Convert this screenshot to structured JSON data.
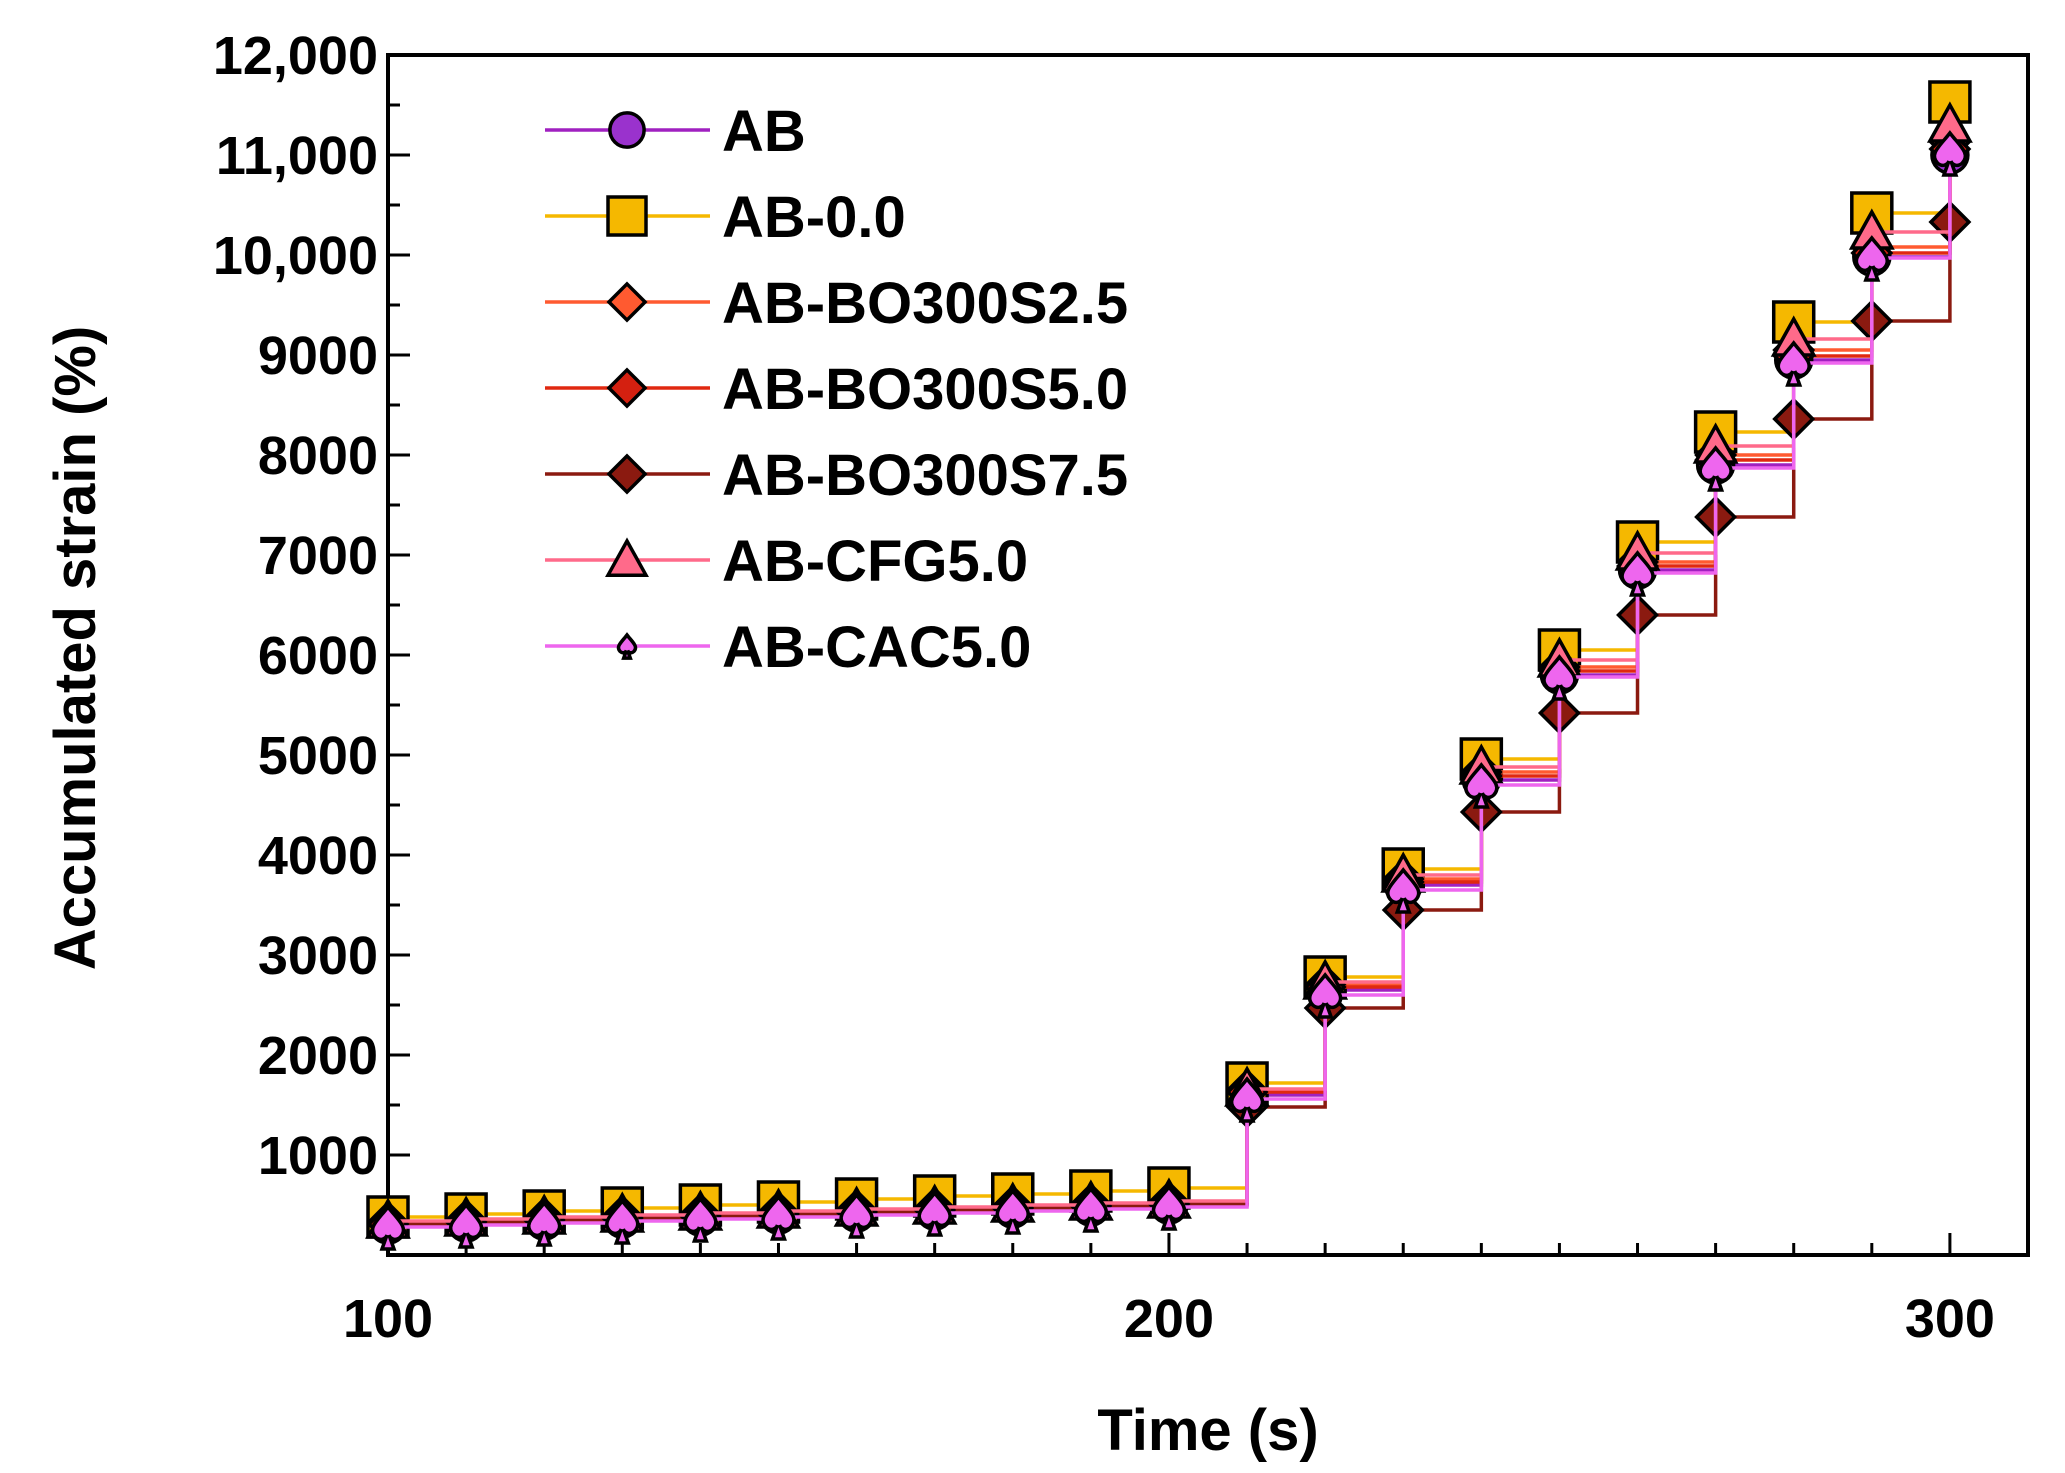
{
  "chart_data": {
    "type": "line",
    "xlabel": "Time (s)",
    "ylabel": "Accumulated strain (%)",
    "xlim": [
      100,
      310
    ],
    "ylim": [
      0,
      12000
    ],
    "x_ticks": [
      {
        "value": 100,
        "label": "100"
      },
      {
        "value": 200,
        "label": "200"
      },
      {
        "value": 300,
        "label": "300"
      }
    ],
    "y_ticks": [
      {
        "value": 1000,
        "label": "1000"
      },
      {
        "value": 2000,
        "label": "2000"
      },
      {
        "value": 3000,
        "label": "3000"
      },
      {
        "value": 4000,
        "label": "4000"
      },
      {
        "value": 5000,
        "label": "5000"
      },
      {
        "value": 6000,
        "label": "6000"
      },
      {
        "value": 7000,
        "label": "7000"
      },
      {
        "value": 8000,
        "label": "8000"
      },
      {
        "value": 9000,
        "label": "9000"
      },
      {
        "value": 10000,
        "label": "10,000"
      },
      {
        "value": 11000,
        "label": "11,000"
      },
      {
        "value": 12000,
        "label": "12,000"
      }
    ],
    "legend_position": "top-left",
    "x": [
      100,
      110,
      120,
      130,
      140,
      150,
      160,
      170,
      180,
      190,
      200,
      210,
      220,
      230,
      240,
      250,
      260,
      270,
      280,
      290,
      300
    ],
    "series": [
      {
        "name": "AB",
        "marker": "circle",
        "line_color": "#a020c0",
        "fill": "#9a32cd",
        "values": [
          300,
          320,
          340,
          360,
          380,
          400,
          420,
          440,
          460,
          480,
          500,
          1600,
          2650,
          3700,
          4750,
          5800,
          6850,
          7900,
          8950,
          9980,
          11000
        ]
      },
      {
        "name": "AB-0.0",
        "marker": "square",
        "line_color": "#f5b800",
        "fill": "#f5b800",
        "values": [
          380,
          410,
          440,
          470,
          500,
          530,
          560,
          590,
          610,
          640,
          670,
          1720,
          2780,
          3860,
          4960,
          6050,
          7130,
          8230,
          9330,
          10420,
          11530
        ]
      },
      {
        "name": "AB-BO300S2.5",
        "marker": "diamond",
        "line_color": "#ff5a30",
        "fill": "#ff5a30",
        "values": [
          330,
          350,
          370,
          390,
          410,
          430,
          450,
          470,
          490,
          510,
          530,
          1650,
          2700,
          3760,
          4830,
          5880,
          6930,
          8000,
          9050,
          10080,
          11130
        ]
      },
      {
        "name": "AB-BO300S5.0",
        "marker": "diamond",
        "line_color": "#e02810",
        "fill": "#d42010",
        "values": [
          320,
          340,
          360,
          380,
          400,
          420,
          440,
          460,
          480,
          500,
          520,
          1630,
          2680,
          3730,
          4790,
          5840,
          6890,
          7950,
          8990,
          10020,
          11060
        ]
      },
      {
        "name": "AB-BO300S7.5",
        "marker": "diamond",
        "line_color": "#8b1a10",
        "fill": "#8b1a10",
        "values": [
          310,
          330,
          350,
          370,
          390,
          410,
          430,
          450,
          470,
          490,
          510,
          1480,
          2470,
          3450,
          4430,
          5420,
          6400,
          7380,
          8360,
          9340,
          10330
        ]
      },
      {
        "name": "AB-CFG5.0",
        "marker": "triangle",
        "line_color": "#ff6a8a",
        "fill": "#ff6a8a",
        "values": [
          340,
          360,
          380,
          400,
          420,
          440,
          460,
          480,
          500,
          520,
          540,
          1660,
          2730,
          3800,
          4880,
          5950,
          7020,
          8090,
          9160,
          10230,
          11300
        ]
      },
      {
        "name": "AB-CAC5.0",
        "marker": "spade",
        "line_color": "#ee66ee",
        "fill": "#ee66ee",
        "values": [
          280,
          300,
          320,
          340,
          360,
          380,
          400,
          420,
          440,
          460,
          480,
          1560,
          2600,
          3650,
          4700,
          5780,
          6820,
          7870,
          8920,
          9970,
          11020
        ]
      }
    ]
  }
}
